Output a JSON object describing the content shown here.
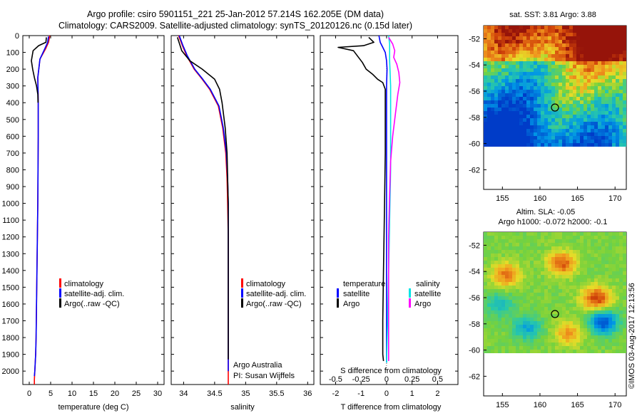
{
  "figure": {
    "title_line1": "Argo profile: csiro 5901151_221 25-Jan-2012 57.214S 162.205E (DM data)",
    "title_line2": "Climatology: CARS2009. Satellite-adjusted climatology: synTS_20120126.nc (0.15d later)",
    "credit": "©IMOS 03-Aug-2017 12:13:56",
    "source_note_line1": "Argo Australia",
    "source_note_line2": "PI: Susan Wijffels"
  },
  "map_top": {
    "title": "sat. SST: 3.81  Argo: 3.88"
  },
  "map_bottom": {
    "title_line1": "Altim. SLA: -0.05",
    "title_line2": "Argo h1000: -0.072  h2000: -0.1"
  },
  "chart_data": [
    {
      "type": "line",
      "panel": "temperature",
      "xlabel": "temperature (deg C)",
      "ylabel": "",
      "xlim": [
        -1.5,
        31.5
      ],
      "ylim": [
        2080,
        0
      ],
      "xticks": [
        0,
        5,
        10,
        15,
        20,
        25,
        30
      ],
      "yticks": [
        0,
        100,
        200,
        300,
        400,
        500,
        600,
        700,
        800,
        900,
        1000,
        1100,
        1200,
        1300,
        1400,
        1500,
        1600,
        1700,
        1800,
        1900,
        2000
      ],
      "legend": {
        "placement": "lower-center",
        "entries": [
          "climatology",
          "satellite-adj. clim.",
          "Argo(..raw -QC)"
        ]
      },
      "series": [
        {
          "name": "climatology",
          "color": "#ff0000",
          "x": [
            4.8,
            4.5,
            3.8,
            2.5,
            2.0,
            2.1,
            2.1,
            2.05,
            2.0,
            1.9,
            1.8,
            1.7,
            1.6,
            1.5,
            1.4,
            1.3,
            1.2,
            1.2
          ],
          "y": [
            0,
            40,
            80,
            140,
            250,
            400,
            600,
            800,
            1000,
            1200,
            1400,
            1600,
            1800,
            1900,
            1950,
            2000,
            2050,
            2080
          ]
        },
        {
          "name": "satellite-adj. clim.",
          "color": "#0000ff",
          "x": [
            4.5,
            4.3,
            3.6,
            2.5,
            2.0,
            2.1,
            2.1,
            2.05,
            2.0,
            1.9,
            1.8,
            1.7,
            1.6,
            1.5,
            1.4,
            1.3,
            1.2
          ],
          "y": [
            5,
            40,
            80,
            140,
            250,
            400,
            600,
            800,
            1000,
            1200,
            1400,
            1600,
            1800,
            1900,
            1950,
            2000,
            2030
          ]
        },
        {
          "name": "Argo(..raw -QC)",
          "color": "#000000",
          "x": [
            4.0,
            3.9,
            2.2,
            0.9,
            0.5,
            0.8,
            1.2,
            1.7,
            2.0,
            2.05
          ],
          "y": [
            10,
            40,
            60,
            90,
            150,
            200,
            250,
            300,
            350,
            400
          ]
        }
      ]
    },
    {
      "type": "line",
      "panel": "salinity",
      "xlabel": "salinity",
      "ylabel": "",
      "xlim": [
        33.8,
        36.1
      ],
      "ylim": [
        2080,
        0
      ],
      "xticks": [
        34,
        34.5,
        35,
        35.5,
        36
      ],
      "legend": {
        "placement": "lower-center",
        "entries": [
          "climatology",
          "satellite-adj. clim.",
          "Argo(..raw -QC)"
        ]
      },
      "series": [
        {
          "name": "climatology",
          "color": "#ff0000",
          "x": [
            33.92,
            33.98,
            34.05,
            34.17,
            34.3,
            34.42,
            34.56,
            34.63,
            34.68,
            34.7,
            34.71,
            34.72,
            34.72,
            34.72,
            34.72,
            34.72
          ],
          "y": [
            0,
            60,
            120,
            200,
            260,
            320,
            420,
            550,
            700,
            850,
            1000,
            1200,
            1500,
            1800,
            2000,
            2080
          ]
        },
        {
          "name": "satellite-adj. clim.",
          "color": "#0000ff",
          "x": [
            33.93,
            33.99,
            34.06,
            34.18,
            34.31,
            34.43,
            34.57,
            34.64,
            34.69,
            34.71,
            34.72,
            34.72,
            34.72,
            34.72,
            34.72
          ],
          "y": [
            0,
            60,
            120,
            200,
            260,
            320,
            420,
            550,
            700,
            850,
            1000,
            1200,
            1500,
            1800,
            2000
          ]
        },
        {
          "name": "Argo(..raw -QC)",
          "color": "#000000",
          "x": [
            33.9,
            33.97,
            34.1,
            34.3,
            34.5,
            34.58,
            34.62,
            34.67,
            34.7,
            34.71,
            34.72,
            34.72,
            34.72,
            34.72,
            34.72
          ],
          "y": [
            10,
            90,
            150,
            200,
            260,
            320,
            400,
            550,
            700,
            850,
            1000,
            1200,
            1500,
            1800,
            1930
          ]
        }
      ]
    },
    {
      "type": "line",
      "panel": "difference",
      "xlabel": "T difference from climatology",
      "xlabel2": "S difference from climatology",
      "xlim": [
        -2.6,
        2.8
      ],
      "ylim": [
        2080,
        0
      ],
      "xticks": [
        -2,
        -1,
        0,
        1,
        2
      ],
      "xticks_salinity": [
        -0.5,
        -0.25,
        0,
        0.25,
        0.5
      ],
      "legend": {
        "placement": "lower-center",
        "group1": "temperature",
        "group2": "salinity",
        "entries": [
          "satellite",
          "Argo",
          "satellite",
          "Argo"
        ]
      },
      "series": [
        {
          "name": "satellite",
          "group": "temperature",
          "color": "#0000ff",
          "x": [
            -0.3,
            -0.25,
            -0.15,
            -0.05,
            0.0,
            0.02,
            0.0,
            0.0,
            0.0,
            0.0,
            0.0,
            0.0,
            0.0
          ],
          "y": [
            0,
            40,
            70,
            100,
            150,
            200,
            300,
            500,
            800,
            1200,
            1600,
            1900,
            1950
          ]
        },
        {
          "name": "Argo",
          "group": "temperature",
          "color": "#000000",
          "x": [
            -0.7,
            -0.5,
            -0.9,
            -1.9,
            -1.3,
            -0.95,
            -0.8,
            -0.55,
            -0.35,
            -0.15,
            -0.05,
            -0.05,
            -0.05,
            -0.08,
            -0.12,
            -0.15,
            -0.15,
            -0.12
          ],
          "y": [
            10,
            40,
            60,
            70,
            90,
            160,
            200,
            230,
            260,
            280,
            320,
            400,
            700,
            1000,
            1400,
            1700,
            1900,
            1940
          ]
        },
        {
          "name": "satellite",
          "group": "salinity",
          "color": "#00e5e5",
          "x": [
            0.02,
            0.03,
            0.03,
            0.04,
            0.04,
            0.04,
            0.03,
            0.02,
            0.01,
            0.0
          ],
          "y": [
            0,
            50,
            150,
            300,
            500,
            800,
            1100,
            1400,
            1700,
            1950
          ]
        },
        {
          "name": "Argo",
          "group": "salinity",
          "color": "#ff00ff",
          "x": [
            0.02,
            0.06,
            0.08,
            0.07,
            0.1,
            0.12,
            0.13,
            0.11,
            0.09,
            0.06,
            0.04,
            0.03,
            0.02,
            0.02,
            0.02,
            0.02
          ],
          "y": [
            10,
            50,
            90,
            130,
            170,
            220,
            280,
            350,
            450,
            600,
            750,
            950,
            1200,
            1500,
            1800,
            1940
          ]
        }
      ]
    },
    {
      "type": "heatmap",
      "panel": "sst-map",
      "xlim": [
        152.5,
        171.5
      ],
      "ylim": [
        -63.5,
        -51
      ],
      "xticks": [
        155,
        160,
        165,
        170
      ],
      "yticks": [
        -52,
        -54,
        -56,
        -58,
        -60,
        -62
      ],
      "profile_position": [
        162.2,
        -57.2
      ]
    },
    {
      "type": "heatmap",
      "panel": "sla-map",
      "xlim": [
        152.5,
        171.5
      ],
      "ylim": [
        -63.5,
        -51
      ],
      "xticks": [
        155,
        160,
        165,
        170
      ],
      "yticks": [
        -52,
        -54,
        -56,
        -58,
        -60,
        -62
      ],
      "profile_position": [
        162.2,
        -57.2
      ]
    }
  ]
}
